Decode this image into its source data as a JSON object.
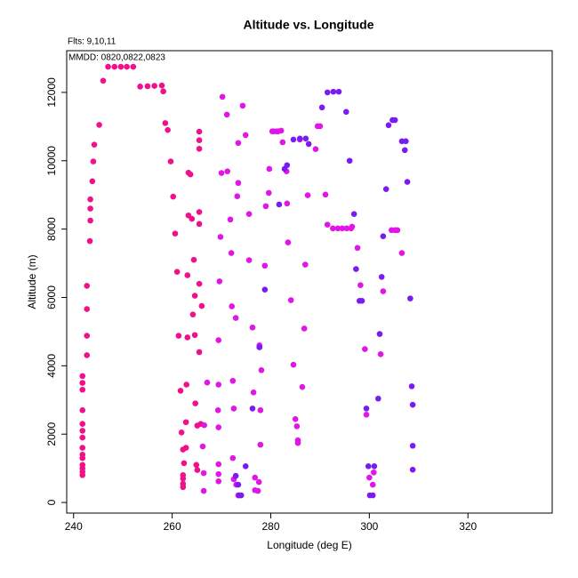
{
  "chart_data": {
    "type": "scatter",
    "title": "Altitude vs. Longitude",
    "subtitle": "Flts: 9,10,11",
    "annotation": "MMDD: 0820,0822,0823",
    "x_label": "Longitude (deg E)",
    "y_label": "Altitude (m)",
    "xlim": [
      238.6,
      337.1
    ],
    "ylim": [
      -310,
      13220
    ],
    "xticks": [
      240,
      260,
      280,
      300,
      320
    ],
    "yticks": [
      0,
      2000,
      4000,
      6000,
      8000,
      10000,
      12000
    ],
    "series": [
      {
        "color": "#f0108c",
        "x": [
          241.8,
          241.8,
          241.8,
          241.8,
          241.8,
          241.8,
          241.8,
          241.8,
          241.8,
          241.8,
          241.8,
          241.8,
          241.8,
          241.8,
          242.7,
          242.7,
          242.7,
          242.7,
          243.3,
          243.4,
          243.4,
          243.4,
          243.8,
          244.0,
          244.2,
          245.2,
          246.0,
          247.0,
          248.3,
          249.6,
          250.8,
          252.1,
          253.5,
          255.0,
          256.4,
          257.9,
          258.2,
          258.6,
          259.1,
          259.7,
          260.2,
          260.6,
          261.0,
          261.3,
          261.7,
          261.9,
          262.2,
          262.2,
          262.2,
          262.2,
          262.2,
          263.1,
          263.1,
          262.9,
          262.8,
          262.8,
          262.4,
          263.3,
          263.7,
          263.3,
          264.0,
          264.4,
          264.6,
          264.6,
          264.2,
          264.7,
          265.1,
          264.9,
          265.1,
          265.5,
          265.5,
          265.5,
          265.5,
          265.5,
          265.5,
          266.0,
          265.5,
          265.8
        ],
        "y": [
          800,
          900,
          1000,
          1100,
          1300,
          1400,
          1600,
          1900,
          2100,
          2300,
          2700,
          3300,
          3500,
          3700,
          4310,
          4880,
          5660,
          6340,
          7650,
          8250,
          8600,
          8870,
          9400,
          9980,
          10470,
          11050,
          12340,
          12750,
          12750,
          12750,
          12750,
          12750,
          12170,
          12180,
          12190,
          12200,
          12030,
          11100,
          10900,
          9980,
          8950,
          7870,
          6750,
          4880,
          3270,
          2050,
          1550,
          800,
          700,
          550,
          450,
          6650,
          4830,
          3450,
          2350,
          1600,
          1150,
          9650,
          9600,
          8400,
          8300,
          7100,
          6050,
          4900,
          5500,
          2900,
          2250,
          1100,
          950,
          8500,
          8150,
          10850,
          10600,
          10350,
          6400,
          5750,
          4400,
          2300
        ]
      },
      {
        "color": "#e015e6",
        "x": [
          266.4,
          266.4,
          266.2,
          266.5,
          267.1,
          269.4,
          269.4,
          269.3,
          269.4,
          269.4,
          269.4,
          269.4,
          269.6,
          269.8,
          270.0,
          270.2,
          271.1,
          271.2,
          272.0,
          271.8,
          272.1,
          272.9,
          272.3,
          272.5,
          272.3,
          272.5,
          273.0,
          273.4,
          273.4,
          273.2,
          273.4,
          274.3,
          274.9,
          275.6,
          275.6,
          276.3,
          276.5,
          276.8,
          276.8,
          277.4,
          277.6,
          277.9,
          277.9,
          278.1,
          277.7,
          278.8,
          279.0,
          279.6,
          279.7,
          280.3,
          280.6,
          281.2,
          281.5,
          282.1,
          282.4,
          283.2,
          283.3,
          283.5,
          284.1,
          284.6,
          285.0,
          285.3,
          285.5,
          285.5,
          286.4,
          286.8,
          287.0,
          287.5,
          285.9,
          289.1,
          289.5,
          290.0,
          291.1,
          291.5,
          292.6,
          293.6,
          294.5,
          295.4,
          296.3,
          296.5,
          297.6,
          298.2,
          299.1,
          299.4,
          300.0,
          300.7,
          300.9,
          302.3,
          302.8,
          304.5,
          305.2,
          305.7,
          306.6
        ],
        "y": [
          860,
          340,
          1640,
          2260,
          3510,
          4750,
          3450,
          2700,
          2200,
          1120,
          830,
          620,
          6470,
          7770,
          9640,
          11870,
          11350,
          9690,
          7300,
          8280,
          5740,
          5400,
          3560,
          2750,
          1300,
          680,
          520,
          210,
          9350,
          8960,
          10520,
          11610,
          10750,
          8440,
          7090,
          5120,
          3220,
          730,
          360,
          340,
          600,
          1690,
          2700,
          3870,
          4600,
          6930,
          8670,
          9060,
          9760,
          10860,
          10860,
          10860,
          10860,
          10880,
          10540,
          9690,
          8750,
          7610,
          5920,
          4030,
          2440,
          2230,
          1820,
          1740,
          3380,
          5090,
          6960,
          8990,
          10620,
          10340,
          11010,
          11010,
          9010,
          8130,
          8020,
          8020,
          8020,
          8020,
          8020,
          8070,
          7450,
          6360,
          4490,
          2570,
          730,
          520,
          880,
          4340,
          6180,
          7970,
          7970,
          7970,
          7300
        ]
      },
      {
        "color": "#7a1cf0",
        "x": [
          272.9,
          273.4,
          273.6,
          274.0,
          274.9,
          276.3,
          277.7,
          278.8,
          281.7,
          282.8,
          283.3,
          284.6,
          285.9,
          287.1,
          287.7,
          290.4,
          291.5,
          292.7,
          293.8,
          295.3,
          296.0,
          296.9,
          297.3,
          298.0,
          298.5,
          299.4,
          299.8,
          300.1,
          300.7,
          301.0,
          301.8,
          302.1,
          302.5,
          302.8,
          303.4,
          303.9,
          304.7,
          305.2,
          306.6,
          307.4,
          307.2,
          307.7,
          308.3,
          308.6,
          308.8,
          308.8,
          308.8
        ],
        "y": [
          780,
          520,
          210,
          210,
          1060,
          2750,
          4540,
          6230,
          8720,
          9760,
          9870,
          10620,
          10650,
          10650,
          10490,
          11560,
          12000,
          12020,
          12020,
          11430,
          10000,
          8440,
          6830,
          5900,
          5900,
          2750,
          1060,
          210,
          210,
          1060,
          3040,
          4930,
          6600,
          7790,
          9170,
          11040,
          11190,
          11190,
          10570,
          10570,
          10310,
          9380,
          5970,
          3400,
          2860,
          1660,
          960
        ]
      }
    ]
  }
}
